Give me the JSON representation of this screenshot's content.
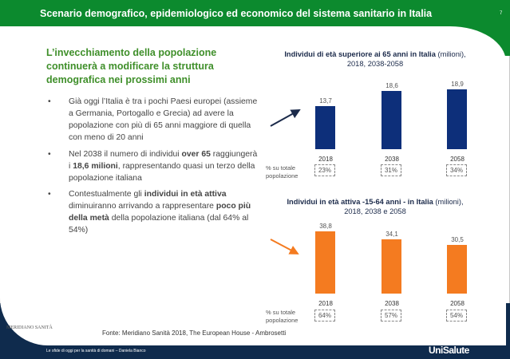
{
  "header": {
    "title": "Scenario demografico, epidemiologico ed economico del sistema sanitario in Italia",
    "page_number": "7"
  },
  "subtitle": "L’invecchiamento della popolazione continuerà a modificare la struttura demografica nei prossimi anni",
  "bullets": [
    {
      "segments": [
        {
          "t": "Già oggi l’Italia è tra i pochi Paesi europei (assieme a Germania, Portogallo e Grecia) ad avere la popolazione con più di 65 anni maggiore di quella con meno di 20 anni",
          "b": false
        }
      ]
    },
    {
      "segments": [
        {
          "t": "Nel 2038 il numero di individui ",
          "b": false
        },
        {
          "t": "over 65",
          "b": true
        },
        {
          "t": " raggiungerà i ",
          "b": false
        },
        {
          "t": "18,6 milioni",
          "b": true
        },
        {
          "t": ", rappresentando quasi un terzo della popolazione italiana",
          "b": false
        }
      ]
    },
    {
      "segments": [
        {
          "t": "Contestualmente gli ",
          "b": false
        },
        {
          "t": "individui in età attiva",
          "b": true
        },
        {
          "t": " diminuiranno  arrivando a rappresentare ",
          "b": false
        },
        {
          "t": "poco più della metà",
          "b": true
        },
        {
          "t": " della popolazione italiana (dal 64% al 54%)",
          "b": false
        }
      ]
    }
  ],
  "bullet_symbol": "•",
  "chart_data": [
    {
      "type": "bar",
      "title_bold": "Individui di età superiore ai 65 anni in Italia",
      "title_normal": " (milioni),",
      "title_line2": "2018, 2038-2058",
      "categories": [
        "2018",
        "2038",
        "2058"
      ],
      "values": [
        13.7,
        18.6,
        18.9
      ],
      "value_labels": [
        "13,7",
        "18,6",
        "18,9"
      ],
      "share_label": "% su totale popolazione",
      "shares": [
        "23%",
        "31%",
        "34%"
      ],
      "color": "#0d2f7a",
      "trend": "up",
      "trend_color": "#1b2a4a",
      "ylim": [
        0,
        20
      ]
    },
    {
      "type": "bar",
      "title_bold": "Individui in età attiva -15-64 anni - in Italia",
      "title_normal": " (milioni),",
      "title_line2": "2018, 2038 e 2058",
      "categories": [
        "2018",
        "2038",
        "2058"
      ],
      "values": [
        38.8,
        34.1,
        30.5
      ],
      "value_labels": [
        "38,8",
        "34,1",
        "30,5"
      ],
      "share_label": "% su totale popolazione",
      "shares": [
        "64%",
        "57%",
        "54%"
      ],
      "color": "#f47b20",
      "trend": "down",
      "trend_color": "#f47b20",
      "ylim": [
        0,
        40
      ]
    }
  ],
  "source": "Fonte: Meridiano Sanità 2018, The European House - Ambrosetti",
  "logo_text": "MERIDIANO SANITÀ",
  "footer": {
    "text": "Le sfide di oggi per la sanità di domani – Daniela Bianco",
    "brand": "UniSalute"
  },
  "colors": {
    "green": "#0c8a2e",
    "navy": "#0f2b4d"
  }
}
